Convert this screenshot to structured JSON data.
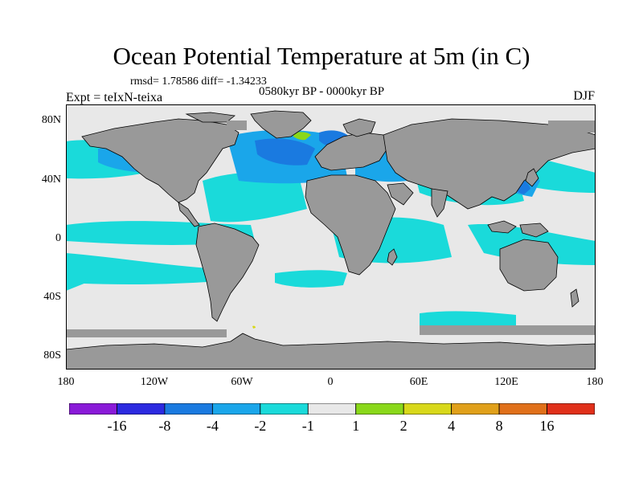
{
  "title": "Ocean Potential Temperature at 5m (in C)",
  "stats": "rmsd= 1.78586  diff= -1.34233",
  "subtitle": "0580kyr BP - 0000kyr BP",
  "experiment": "Expt = teIxN-teixa",
  "season": "DJF",
  "yticks": [
    "80N",
    "40N",
    "0",
    "40S",
    "80S"
  ],
  "xticks": [
    "180",
    "120W",
    "60W",
    "0",
    "60E",
    "120E",
    "180"
  ],
  "legend": {
    "labels": [
      "-16",
      "-8",
      "-4",
      "-2",
      "-1",
      "1",
      "2",
      "4",
      "8",
      "16"
    ],
    "colors": [
      "#8a1ad8",
      "#2c2ae0",
      "#1a7ae0",
      "#1aa6ea",
      "#1adada",
      "#e8e8e8",
      "#8ad81a",
      "#d8d81a",
      "#e0a01a",
      "#e0701a",
      "#e0301a"
    ]
  },
  "colors": {
    "land": "#999999",
    "no_change": "#e8e8e8",
    "cool1": "#1adada",
    "cool2": "#1aa6ea",
    "cool3": "#1a7ae0",
    "warm1": "#8ad81a",
    "warm2": "#d8d81a"
  }
}
